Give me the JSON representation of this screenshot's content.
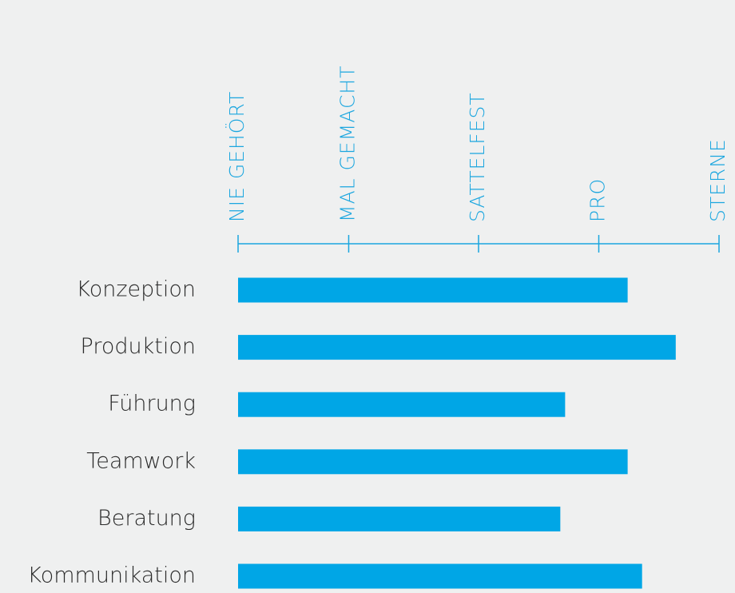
{
  "chart_data": {
    "type": "bar",
    "orientation": "horizontal",
    "categories": [
      "Konzeption",
      "Produktion",
      "Führung",
      "Teamwork",
      "Beratung",
      "Kommunikation"
    ],
    "values": [
      81,
      91,
      68,
      81,
      67,
      84
    ],
    "color": "#00a6e6",
    "xlim": [
      0,
      100
    ],
    "xticks": [
      {
        "value": 0,
        "label": "NIE GEHÖRT"
      },
      {
        "value": 23,
        "label": "MAL GEMACHT"
      },
      {
        "value": 50,
        "label": "SATTELFEST"
      },
      {
        "value": 75,
        "label": "PRO"
      },
      {
        "value": 100,
        "label": "STERNE"
      }
    ]
  }
}
